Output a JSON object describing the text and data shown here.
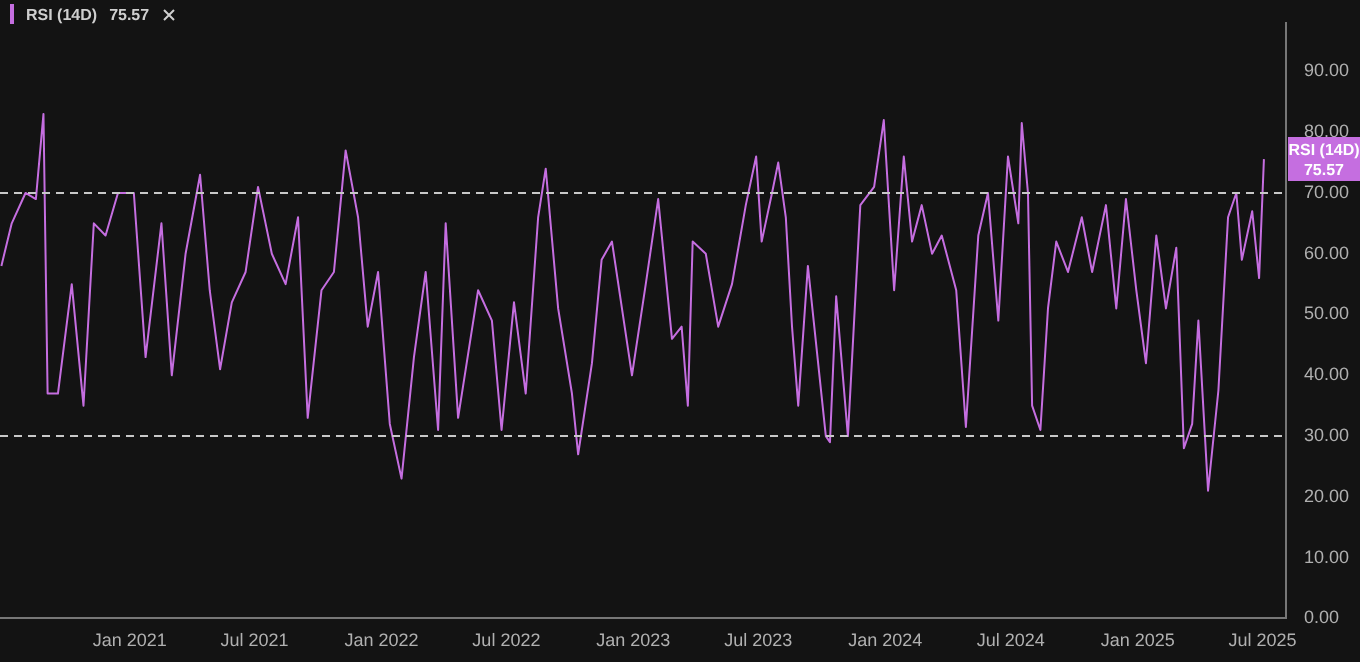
{
  "chart_data": {
    "type": "line",
    "legend": "top left",
    "line_style": "solid",
    "marker": "none",
    "grid": false,
    "x": [
      "2020-06-29",
      "2020-07-14",
      "2020-08-03",
      "2020-08-18",
      "2020-08-29",
      "2020-09-04",
      "2020-09-19",
      "2020-10-09",
      "2020-10-26",
      "2020-11-10",
      "2020-11-27",
      "2020-12-15",
      "2021-01-07",
      "2021-01-24",
      "2021-02-16",
      "2021-03-03",
      "2021-03-23",
      "2021-04-13",
      "2021-04-27",
      "2021-05-12",
      "2021-05-29",
      "2021-06-18",
      "2021-07-06",
      "2021-07-26",
      "2021-08-15",
      "2021-09-02",
      "2021-09-16",
      "2021-10-06",
      "2021-10-24",
      "2021-11-10",
      "2021-11-28",
      "2021-12-12",
      "2021-12-27",
      "2022-01-13",
      "2022-01-30",
      "2022-02-17",
      "2022-03-06",
      "2022-03-24",
      "2022-04-04",
      "2022-04-22",
      "2022-05-21",
      "2022-06-10",
      "2022-06-24",
      "2022-07-12",
      "2022-07-29",
      "2022-08-16",
      "2022-08-27",
      "2022-09-14",
      "2022-10-04",
      "2022-10-13",
      "2022-11-02",
      "2022-11-16",
      "2022-12-01",
      "2022-12-30",
      "2023-01-19",
      "2023-02-06",
      "2023-02-26",
      "2023-03-12",
      "2023-03-21",
      "2023-03-28",
      "2023-04-16",
      "2023-05-04",
      "2023-05-24",
      "2023-06-13",
      "2023-06-28",
      "2023-07-06",
      "2023-07-21",
      "2023-07-30",
      "2023-08-10",
      "2023-08-19",
      "2023-08-28",
      "2023-09-11",
      "2023-10-07",
      "2023-10-13",
      "2023-10-22",
      "2023-11-08",
      "2023-11-26",
      "2023-12-16",
      "2023-12-30",
      "2024-01-14",
      "2024-01-28",
      "2024-02-09",
      "2024-02-23",
      "2024-03-09",
      "2024-03-23",
      "2024-04-13",
      "2024-04-27",
      "2024-05-15",
      "2024-05-29",
      "2024-06-13",
      "2024-06-27",
      "2024-07-12",
      "2024-07-17",
      "2024-07-26",
      "2024-08-01",
      "2024-08-13",
      "2024-08-24",
      "2024-09-05",
      "2024-09-22",
      "2024-10-12",
      "2024-10-27",
      "2024-11-16",
      "2024-12-01",
      "2024-12-15",
      "2024-12-30",
      "2025-01-13",
      "2025-01-28",
      "2025-02-11",
      "2025-02-26",
      "2025-03-09",
      "2025-03-21",
      "2025-03-30",
      "2025-04-13",
      "2025-04-28",
      "2025-05-12",
      "2025-05-24",
      "2025-06-01",
      "2025-06-16",
      "2025-06-26",
      "2025-07-03"
    ],
    "series": [
      {
        "name": "RSI (14D)",
        "color": "#c56ee0",
        "values": [
          58,
          65,
          70,
          69,
          83,
          37,
          37,
          55,
          35,
          65,
          63,
          70,
          70,
          43,
          65,
          40,
          60,
          73,
          54,
          41,
          52,
          57,
          71,
          60,
          55,
          66,
          33,
          54,
          57,
          77,
          66,
          48,
          57,
          32,
          23,
          43,
          57,
          31,
          65,
          33,
          54,
          49,
          31,
          52,
          37,
          66,
          74,
          51,
          37,
          27,
          42,
          59,
          62,
          40,
          55,
          69,
          46,
          48,
          35,
          62,
          60,
          48,
          55,
          68,
          76,
          62,
          70,
          75,
          66,
          48,
          35,
          58,
          30,
          29,
          53,
          30,
          68,
          71,
          82,
          54,
          76,
          62,
          68,
          60,
          63,
          54,
          31.5,
          63,
          70,
          49,
          76,
          65,
          81.5,
          70,
          35,
          31,
          51,
          62,
          57,
          66,
          57,
          68,
          51,
          69,
          54,
          42,
          63,
          51,
          61,
          28,
          32,
          49,
          21,
          37.5,
          66,
          70,
          59,
          67,
          56,
          75.57
        ]
      }
    ],
    "xlim": [
      "2020-06-27",
      "2025-08-04"
    ],
    "xticks": [
      {
        "value": "2021-01-01",
        "label": "Jan 2021"
      },
      {
        "value": "2021-07-01",
        "label": "Jul 2021"
      },
      {
        "value": "2022-01-01",
        "label": "Jan 2022"
      },
      {
        "value": "2022-07-01",
        "label": "Jul 2022"
      },
      {
        "value": "2023-01-01",
        "label": "Jan 2023"
      },
      {
        "value": "2023-07-01",
        "label": "Jul 2023"
      },
      {
        "value": "2024-01-01",
        "label": "Jan 2024"
      },
      {
        "value": "2024-07-01",
        "label": "Jul 2024"
      },
      {
        "value": "2025-01-01",
        "label": "Jan 2025"
      },
      {
        "value": "2025-07-01",
        "label": "Jul 2025"
      }
    ],
    "ylim": [
      0,
      98
    ],
    "yticks": [
      {
        "value": 0,
        "label": "0.00"
      },
      {
        "value": 10,
        "label": "10.00"
      },
      {
        "value": 20,
        "label": "20.00"
      },
      {
        "value": 30,
        "label": "30.00"
      },
      {
        "value": 40,
        "label": "40.00"
      },
      {
        "value": 50,
        "label": "50.00"
      },
      {
        "value": 60,
        "label": "60.00"
      },
      {
        "value": 70,
        "label": "70.00"
      },
      {
        "value": 80,
        "label": "80.00"
      },
      {
        "value": 90,
        "label": "90.00"
      }
    ],
    "ref_lines": [
      {
        "axis": "y",
        "value": 70,
        "color": "#c8c8c8",
        "line_style": "dashed"
      },
      {
        "axis": "y",
        "value": 30,
        "color": "#c8c8c8",
        "line_style": "dashed"
      }
    ],
    "annotations": [
      {
        "text": "75.57",
        "y": 75.57
      }
    ]
  }
}
